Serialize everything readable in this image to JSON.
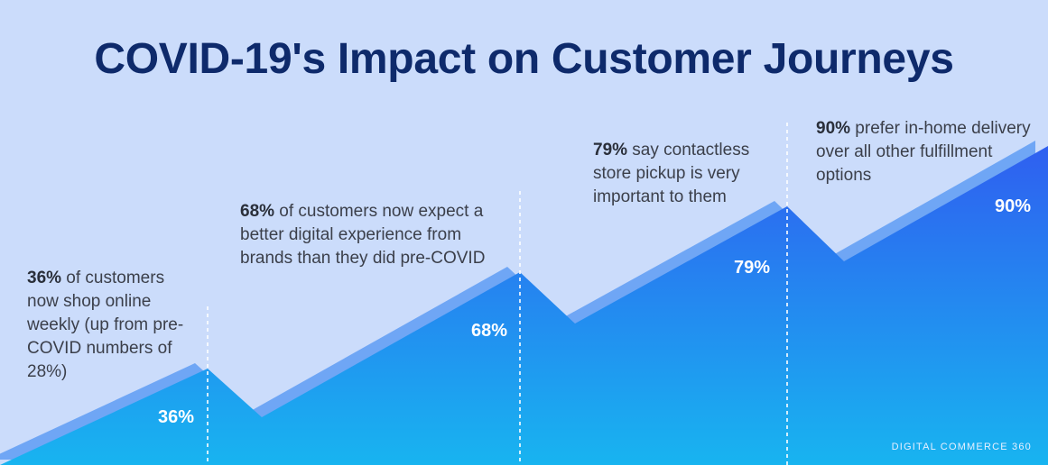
{
  "title": "COVID-19's Impact on Customer Journeys",
  "brand": "DIGITAL COMMERCE 360",
  "colors": {
    "background": "#cbdcfb",
    "title": "#0e2a6b",
    "area_top": "#2f5ff0",
    "area_bottom": "#18b4f0",
    "area_shadow": "#6fa6f5"
  },
  "chart_data": {
    "type": "area",
    "title": "COVID-19's Impact on Customer Journeys",
    "xlabel": "",
    "ylabel": "",
    "grid": false,
    "legend": "none",
    "series": [
      {
        "values": [
          36,
          68,
          79,
          90
        ]
      }
    ],
    "points": [
      {
        "value": 36,
        "label": "36%",
        "annotation_bold": "36%",
        "annotation_text": " of customers now shop online weekly (up from pre-COVID numbers of 28%)"
      },
      {
        "value": 68,
        "label": "68%",
        "annotation_bold": "68%",
        "annotation_text": " of customers now expect a better digital experience from brands than they did pre-COVID"
      },
      {
        "value": 79,
        "label": "79%",
        "annotation_bold": "79%",
        "annotation_text": " say contactless store pickup is very important to them"
      },
      {
        "value": 90,
        "label": "90%",
        "annotation_bold": "90%",
        "annotation_text": " prefer in-home delivery over all other fulfillment options"
      }
    ]
  }
}
